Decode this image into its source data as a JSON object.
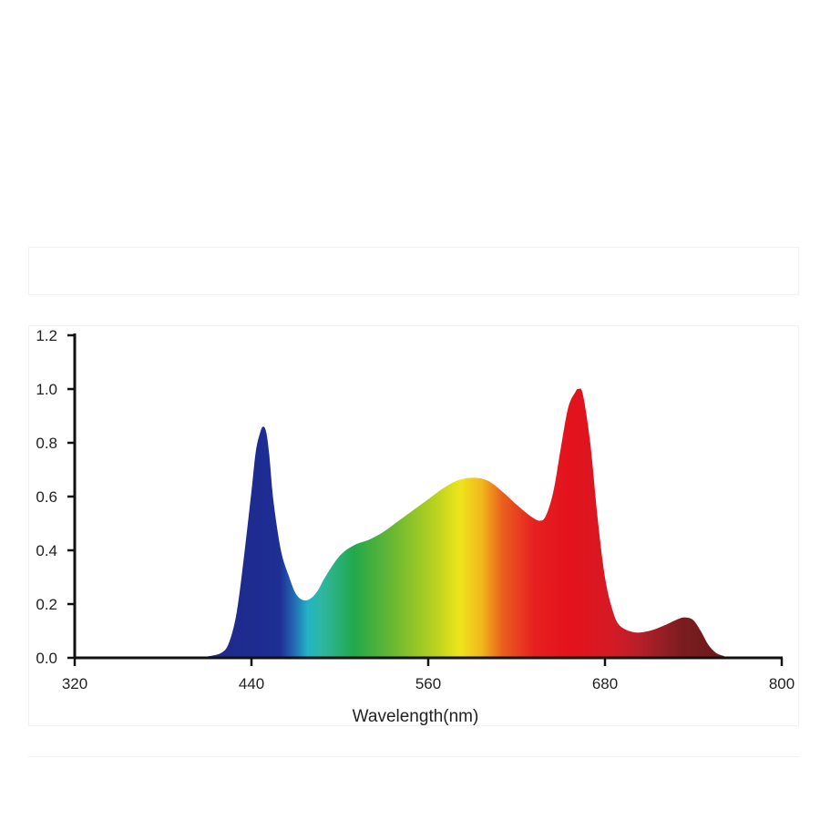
{
  "chart_data": {
    "type": "area",
    "title": "",
    "xlabel": "Wavelength(nm)",
    "ylabel": "",
    "xlim": [
      320,
      800
    ],
    "ylim": [
      0,
      1.2
    ],
    "x_ticks": [
      320,
      440,
      560,
      680,
      800
    ],
    "y_ticks": [
      "0.0",
      "0.2",
      "0.4",
      "0.6",
      "0.8",
      "1.0",
      "1.2"
    ],
    "grid": false,
    "fill": "visible-spectrum color gradient",
    "series": [
      {
        "x": [
          320,
          400,
          410,
          420,
          425,
          430,
          435,
          440,
          443,
          446,
          448,
          450,
          452,
          455,
          460,
          465,
          470,
          475,
          480,
          485,
          490,
          500,
          510,
          520,
          530,
          540,
          550,
          560,
          570,
          580,
          590,
          600,
          610,
          620,
          630,
          636,
          640,
          645,
          650,
          655,
          660,
          662,
          665,
          670,
          675,
          680,
          685,
          690,
          700,
          710,
          720,
          730,
          735,
          740,
          745,
          750,
          755,
          760,
          767,
          800
        ],
        "y": [
          0.0,
          0.0,
          0.005,
          0.02,
          0.06,
          0.17,
          0.38,
          0.62,
          0.77,
          0.84,
          0.86,
          0.84,
          0.76,
          0.58,
          0.4,
          0.31,
          0.24,
          0.215,
          0.22,
          0.25,
          0.3,
          0.38,
          0.42,
          0.44,
          0.47,
          0.51,
          0.55,
          0.59,
          0.63,
          0.66,
          0.67,
          0.66,
          0.62,
          0.57,
          0.525,
          0.51,
          0.53,
          0.62,
          0.78,
          0.93,
          0.99,
          1.0,
          0.98,
          0.8,
          0.52,
          0.3,
          0.18,
          0.12,
          0.095,
          0.1,
          0.12,
          0.145,
          0.15,
          0.14,
          0.1,
          0.05,
          0.02,
          0.008,
          0.0,
          0.0
        ]
      }
    ]
  }
}
